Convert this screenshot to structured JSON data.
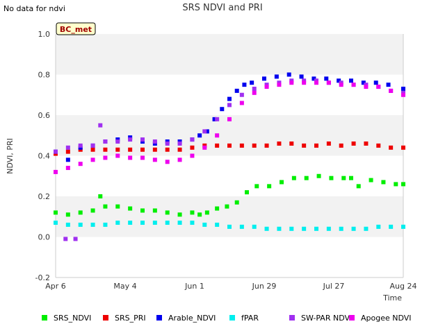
{
  "page": {
    "notice": "No data for ndvi"
  },
  "chart_data": {
    "type": "scatter",
    "title": "SRS NDVI and PRI",
    "xlabel": "Time",
    "ylabel": "NDVI, PRI",
    "x_is_date": true,
    "xlim": [
      "2024-04-06",
      "2024-08-24"
    ],
    "ylim": [
      -0.2,
      1.0
    ],
    "yticks": [
      -0.2,
      0.0,
      0.2,
      0.4,
      0.6,
      0.8,
      1.0
    ],
    "ytick_labels": [
      "-0.2",
      "0.0",
      "0.2",
      "0.4",
      "0.6",
      "0.8",
      "1.0"
    ],
    "xticks": [
      "2024-04-06",
      "2024-05-04",
      "2024-06-01",
      "2024-06-29",
      "2024-07-27",
      "2024-08-24"
    ],
    "xtick_labels": [
      "Apr 6",
      "May 4",
      "Jun 1",
      "Jun 29",
      "Jul 27",
      "Aug 24"
    ],
    "grid": "horizontal alternating bands",
    "legend_position": "bottom",
    "site_label": "BC_met",
    "series": [
      {
        "name": "SRS_NDVI",
        "color": "#00ee00",
        "x": [
          "2024-04-06",
          "2024-04-11",
          "2024-04-16",
          "2024-04-21",
          "2024-04-24",
          "2024-04-26",
          "2024-05-01",
          "2024-05-06",
          "2024-05-11",
          "2024-05-16",
          "2024-05-21",
          "2024-05-26",
          "2024-05-31",
          "2024-06-03",
          "2024-06-06",
          "2024-06-10",
          "2024-06-14",
          "2024-06-18",
          "2024-06-22",
          "2024-06-26",
          "2024-07-01",
          "2024-07-06",
          "2024-07-11",
          "2024-07-16",
          "2024-07-21",
          "2024-07-26",
          "2024-07-31",
          "2024-08-03",
          "2024-08-06",
          "2024-08-11",
          "2024-08-16",
          "2024-08-21",
          "2024-08-24"
        ],
        "y": [
          0.12,
          0.11,
          0.12,
          0.13,
          0.2,
          0.15,
          0.15,
          0.14,
          0.13,
          0.13,
          0.12,
          0.11,
          0.12,
          0.11,
          0.12,
          0.14,
          0.15,
          0.17,
          0.22,
          0.25,
          0.25,
          0.27,
          0.29,
          0.29,
          0.3,
          0.29,
          0.29,
          0.29,
          0.25,
          0.28,
          0.27,
          0.26,
          0.26
        ]
      },
      {
        "name": "SRS_PRI",
        "color": "#ee0000",
        "x": [
          "2024-04-06",
          "2024-04-11",
          "2024-04-16",
          "2024-04-21",
          "2024-04-26",
          "2024-05-01",
          "2024-05-06",
          "2024-05-11",
          "2024-05-16",
          "2024-05-21",
          "2024-05-26",
          "2024-05-31",
          "2024-06-05",
          "2024-06-10",
          "2024-06-15",
          "2024-06-20",
          "2024-06-25",
          "2024-06-30",
          "2024-07-05",
          "2024-07-10",
          "2024-07-15",
          "2024-07-20",
          "2024-07-25",
          "2024-07-30",
          "2024-08-04",
          "2024-08-09",
          "2024-08-14",
          "2024-08-19",
          "2024-08-24"
        ],
        "y": [
          0.41,
          0.42,
          0.43,
          0.43,
          0.43,
          0.43,
          0.43,
          0.43,
          0.43,
          0.43,
          0.43,
          0.44,
          0.45,
          0.45,
          0.45,
          0.45,
          0.45,
          0.45,
          0.46,
          0.46,
          0.45,
          0.45,
          0.46,
          0.45,
          0.46,
          0.46,
          0.45,
          0.44,
          0.44
        ]
      },
      {
        "name": "Arable_NDVI",
        "color": "#0000ee",
        "x": [
          "2024-04-06",
          "2024-04-11",
          "2024-04-16",
          "2024-04-21",
          "2024-04-26",
          "2024-05-01",
          "2024-05-06",
          "2024-05-11",
          "2024-05-16",
          "2024-05-21",
          "2024-05-26",
          "2024-05-31",
          "2024-06-03",
          "2024-06-06",
          "2024-06-09",
          "2024-06-12",
          "2024-06-15",
          "2024-06-18",
          "2024-06-21",
          "2024-06-24",
          "2024-06-29",
          "2024-07-04",
          "2024-07-09",
          "2024-07-14",
          "2024-07-19",
          "2024-07-24",
          "2024-07-29",
          "2024-08-03",
          "2024-08-08",
          "2024-08-13",
          "2024-08-18",
          "2024-08-24"
        ],
        "y": [
          0.42,
          0.38,
          0.44,
          0.45,
          0.47,
          0.48,
          0.49,
          0.47,
          0.46,
          0.47,
          0.47,
          0.48,
          0.5,
          0.52,
          0.58,
          0.63,
          0.68,
          0.72,
          0.75,
          0.76,
          0.78,
          0.79,
          0.8,
          0.79,
          0.78,
          0.78,
          0.77,
          0.77,
          0.76,
          0.76,
          0.75,
          0.73
        ]
      },
      {
        "name": "fPAR",
        "color": "#00eeee",
        "x": [
          "2024-04-06",
          "2024-04-11",
          "2024-04-16",
          "2024-04-21",
          "2024-04-26",
          "2024-05-01",
          "2024-05-06",
          "2024-05-11",
          "2024-05-16",
          "2024-05-21",
          "2024-05-26",
          "2024-05-31",
          "2024-06-05",
          "2024-06-10",
          "2024-06-15",
          "2024-06-20",
          "2024-06-25",
          "2024-06-30",
          "2024-07-05",
          "2024-07-10",
          "2024-07-15",
          "2024-07-20",
          "2024-07-25",
          "2024-07-30",
          "2024-08-04",
          "2024-08-09",
          "2024-08-14",
          "2024-08-19",
          "2024-08-24"
        ],
        "y": [
          0.07,
          0.06,
          0.06,
          0.06,
          0.06,
          0.07,
          0.07,
          0.07,
          0.07,
          0.07,
          0.07,
          0.07,
          0.06,
          0.06,
          0.05,
          0.05,
          0.05,
          0.04,
          0.04,
          0.04,
          0.04,
          0.04,
          0.04,
          0.04,
          0.04,
          0.04,
          0.05,
          0.05,
          0.05
        ]
      },
      {
        "name": "SW-PAR NDVI",
        "color": "#a030f0",
        "x": [
          "2024-04-06",
          "2024-04-11",
          "2024-04-16",
          "2024-04-21",
          "2024-04-24",
          "2024-04-26",
          "2024-05-01",
          "2024-05-06",
          "2024-05-11",
          "2024-05-16",
          "2024-05-21",
          "2024-05-26",
          "2024-05-31",
          "2024-06-05",
          "2024-06-10",
          "2024-06-15",
          "2024-06-20",
          "2024-06-25",
          "2024-06-30",
          "2024-07-05",
          "2024-07-10",
          "2024-07-15",
          "2024-07-20",
          "2024-07-25",
          "2024-07-30",
          "2024-08-04",
          "2024-08-09",
          "2024-08-14",
          "2024-08-19",
          "2024-08-24"
        ],
        "y": [
          0.42,
          0.44,
          0.45,
          0.45,
          0.55,
          0.47,
          0.47,
          0.48,
          0.48,
          0.47,
          0.46,
          0.46,
          0.48,
          0.52,
          0.58,
          0.65,
          0.7,
          0.73,
          0.75,
          0.76,
          0.77,
          0.77,
          0.77,
          0.76,
          0.76,
          0.75,
          0.75,
          0.74,
          0.72,
          0.71
        ]
      },
      {
        "name": "Apogee NDVI",
        "color": "#ee00ee",
        "x": [
          "2024-04-06",
          "2024-04-11",
          "2024-04-16",
          "2024-04-21",
          "2024-04-26",
          "2024-05-01",
          "2024-05-06",
          "2024-05-11",
          "2024-05-16",
          "2024-05-21",
          "2024-05-26",
          "2024-05-31",
          "2024-06-05",
          "2024-06-10",
          "2024-06-15",
          "2024-06-20",
          "2024-06-25",
          "2024-06-30",
          "2024-07-05",
          "2024-07-10",
          "2024-07-15",
          "2024-07-20",
          "2024-07-25",
          "2024-07-30",
          "2024-08-04",
          "2024-08-09",
          "2024-08-14",
          "2024-08-19",
          "2024-08-24"
        ],
        "y": [
          0.32,
          0.34,
          0.36,
          0.38,
          0.39,
          0.4,
          0.39,
          0.39,
          0.38,
          0.37,
          0.38,
          0.4,
          0.44,
          0.5,
          0.58,
          0.66,
          0.71,
          0.74,
          0.75,
          0.76,
          0.76,
          0.76,
          0.76,
          0.75,
          0.75,
          0.74,
          0.74,
          0.72,
          0.7
        ]
      }
    ],
    "annotations": [
      {
        "name": "SW-PAR NDVI",
        "x": [
          "2024-04-10",
          "2024-04-14"
        ],
        "y": [
          -0.01,
          -0.01
        ]
      }
    ]
  }
}
